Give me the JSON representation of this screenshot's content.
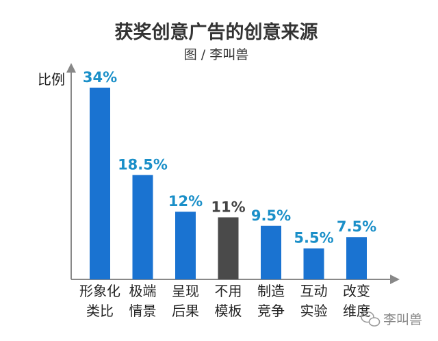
{
  "chart_data": {
    "type": "bar",
    "title": "获奖创意广告的创意来源",
    "subtitle": "图 / 李叫兽",
    "xlabel": "",
    "ylabel": "比例",
    "categories": [
      [
        "形象化",
        "类比"
      ],
      [
        "极端",
        "情景"
      ],
      [
        "呈现",
        "后果"
      ],
      [
        "不用",
        "模板"
      ],
      [
        "制造",
        "竞争"
      ],
      [
        "互动",
        "实验"
      ],
      [
        "改变",
        "维度"
      ]
    ],
    "values": [
      34,
      18.5,
      12,
      11,
      9.5,
      5.5,
      7.5
    ],
    "value_labels": [
      "34%",
      "18.5%",
      "12%",
      "11%",
      "9.5%",
      "5.5%",
      "7.5%"
    ],
    "bar_colors": [
      "#1a73d1",
      "#1a73d1",
      "#1a73d1",
      "#4a4a4a",
      "#1a73d1",
      "#1a73d1",
      "#1a73d1"
    ],
    "label_colors": [
      "#1a8fc8",
      "#1a8fc8",
      "#1a8fc8",
      "#444444",
      "#1a8fc8",
      "#1a8fc8",
      "#1a8fc8"
    ],
    "ylim": [
      0,
      40
    ],
    "grid": false,
    "legend": "none"
  },
  "watermark": {
    "text": "李叫兽",
    "icon": "wechat-icon"
  }
}
